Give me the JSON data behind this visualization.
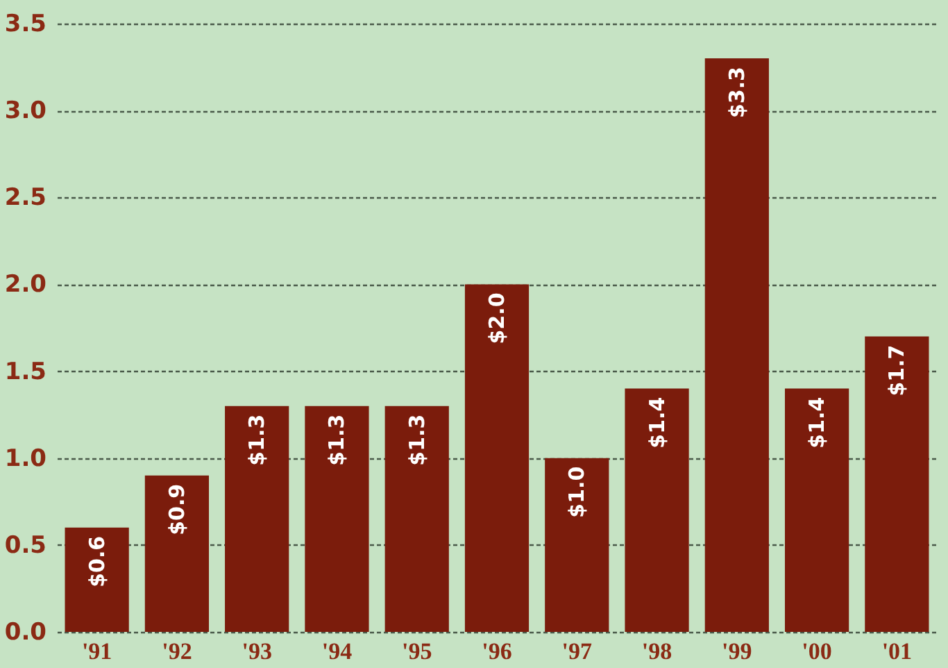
{
  "chart_data": {
    "type": "bar",
    "categories": [
      "'91",
      "'92",
      "'93",
      "'94",
      "'95",
      "'96",
      "'97",
      "'98",
      "'99",
      "'00",
      "'01"
    ],
    "values": [
      0.6,
      0.9,
      1.3,
      1.3,
      1.3,
      2.0,
      1.0,
      1.4,
      3.3,
      1.4,
      1.7
    ],
    "value_labels": [
      "$0.6",
      "$0.9",
      "$1.3",
      "$1.3",
      "$1.3",
      "$2.0",
      "$1.0",
      "$1.4",
      "$3.3",
      "$1.4",
      "$1.7"
    ],
    "color": "#7b1c0c",
    "ylim": [
      0,
      3.5
    ],
    "yticks": [
      {
        "value": 0,
        "label": "0.0"
      },
      {
        "value": 0.5,
        "label": "0.5"
      },
      {
        "value": 1,
        "label": "1.0"
      },
      {
        "value": 1.5,
        "label": "1.5"
      },
      {
        "value": 2,
        "label": "2.0"
      },
      {
        "value": 2.5,
        "label": "2.5"
      },
      {
        "value": 3,
        "label": "3.0"
      },
      {
        "value": 3.5,
        "label": "3.5"
      }
    ],
    "grid": "y"
  }
}
